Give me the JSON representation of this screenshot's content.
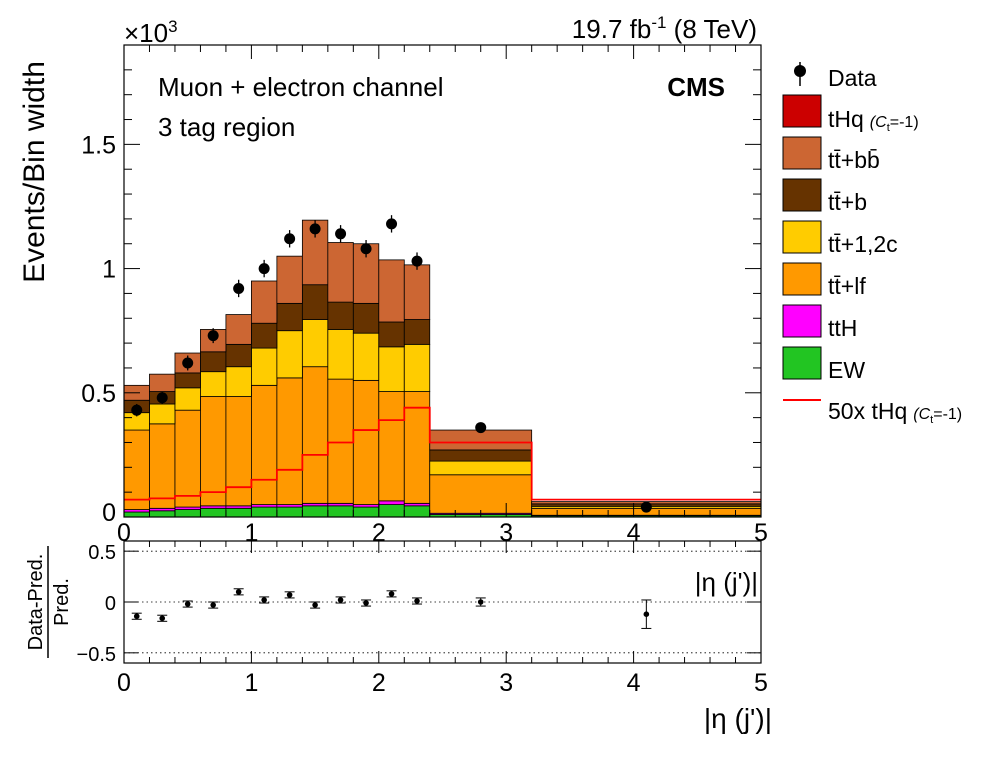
{
  "header": {
    "lumi": "19.7 fb",
    "lumi_sup": "-1",
    "energy": " (8 TeV)",
    "exponent_base": "×10",
    "exponent_sup": "3",
    "experiment": "CMS",
    "channel": "Muon + electron channel",
    "region": "3 tag region"
  },
  "legend": {
    "data": "Data",
    "thq": "tHq",
    "thq_note": "(C",
    "thq_note_sub": "t",
    "thq_note_end": "=-1)",
    "ttbb": "tt̄+bb̄",
    "ttb": "tt̄+b",
    "ttc": "tt̄+1,2c",
    "ttlf": "tt̄+lf",
    "tth": "ttH",
    "ew": "EW",
    "thq50": "50x tHq",
    "thq50_note": "(C",
    "thq50_note_sub": "t",
    "thq50_note_end": "=-1)"
  },
  "chart_data": [
    {
      "type": "area",
      "subtype": "stacked-histogram",
      "ylabel": "Events/Bin width",
      "xlabel": "",
      "y_scale_label": "×10^3",
      "xlim": [
        0,
        5
      ],
      "ylim": [
        0,
        1.9
      ],
      "xticks": [
        0,
        1,
        2,
        3,
        4,
        5
      ],
      "yticks": [
        0,
        0.5,
        1,
        1.5
      ],
      "ytick_labels": [
        "0",
        "0.5",
        "1",
        "1.5"
      ],
      "bin_edges": [
        0,
        0.2,
        0.4,
        0.6,
        0.8,
        1.0,
        1.2,
        1.4,
        1.6,
        1.8,
        2.0,
        2.2,
        2.4,
        3.2,
        5.0
      ],
      "stack_order": [
        "EW",
        "ttH",
        "tt̄+lf",
        "tt̄+1,2c",
        "tt̄+b",
        "tt̄+bb̄",
        "tHq"
      ],
      "series": [
        {
          "name": "EW",
          "color": "#22c522",
          "values": [
            0.02,
            0.025,
            0.03,
            0.035,
            0.035,
            0.04,
            0.04,
            0.045,
            0.045,
            0.04,
            0.05,
            0.045,
            0.01,
            0.005
          ]
        },
        {
          "name": "ttH",
          "color": "#ff00ff",
          "values": [
            0.01,
            0.01,
            0.01,
            0.01,
            0.01,
            0.01,
            0.01,
            0.01,
            0.01,
            0.01,
            0.015,
            0.01,
            0.005,
            0.002
          ]
        },
        {
          "name": "tt̄+lf",
          "color": "#ff9900",
          "values": [
            0.32,
            0.34,
            0.39,
            0.44,
            0.44,
            0.48,
            0.51,
            0.55,
            0.5,
            0.5,
            0.44,
            0.45,
            0.155,
            0.028
          ]
        },
        {
          "name": "tt̄+1,2c",
          "color": "#ffcc00",
          "values": [
            0.07,
            0.08,
            0.09,
            0.1,
            0.12,
            0.15,
            0.19,
            0.19,
            0.2,
            0.19,
            0.18,
            0.19,
            0.055,
            0.008
          ]
        },
        {
          "name": "tt̄+b",
          "color": "#663300",
          "values": [
            0.05,
            0.05,
            0.06,
            0.08,
            0.09,
            0.1,
            0.11,
            0.14,
            0.11,
            0.12,
            0.1,
            0.1,
            0.045,
            0.01
          ]
        },
        {
          "name": "tt̄+bb̄",
          "color": "#cc6633",
          "values": [
            0.06,
            0.07,
            0.08,
            0.09,
            0.12,
            0.17,
            0.19,
            0.26,
            0.24,
            0.24,
            0.25,
            0.22,
            0.08,
            0.009
          ]
        },
        {
          "name": "tHq",
          "color": "#cc0000",
          "values": [
            0.0,
            0.0,
            0.0,
            0.0,
            0.0,
            0.0,
            0.0,
            0.0,
            0.0,
            0.0,
            0.0,
            0.0,
            0.0,
            0.0
          ]
        }
      ],
      "signal_line": {
        "name": "50x tHq",
        "color": "#ff0000",
        "values": [
          0.07,
          0.075,
          0.085,
          0.1,
          0.12,
          0.15,
          0.19,
          0.25,
          0.3,
          0.35,
          0.39,
          0.44,
          0.3,
          0.07
        ]
      },
      "data_points": {
        "name": "Data",
        "x": [
          0.1,
          0.3,
          0.5,
          0.7,
          0.9,
          1.1,
          1.3,
          1.5,
          1.7,
          1.9,
          2.1,
          2.3,
          2.8,
          4.1
        ],
        "y": [
          0.43,
          0.48,
          0.62,
          0.73,
          0.92,
          1.0,
          1.12,
          1.16,
          1.14,
          1.08,
          1.18,
          1.03,
          0.36,
          0.04
        ],
        "err": [
          0.025,
          0.025,
          0.03,
          0.03,
          0.035,
          0.035,
          0.035,
          0.035,
          0.035,
          0.035,
          0.035,
          0.035,
          0.015,
          0.006
        ]
      }
    },
    {
      "type": "scatter",
      "subtype": "ratio",
      "ylabel_top": "Data-Pred.",
      "ylabel_bottom": "Pred.",
      "xlabel": "|η (j')|",
      "xlim": [
        0,
        5
      ],
      "ylim": [
        -0.6,
        0.6
      ],
      "xticks": [
        0,
        1,
        2,
        3,
        4,
        5
      ],
      "yticks": [
        -0.5,
        0,
        0.5
      ],
      "ytick_labels": [
        "−0.5",
        "0",
        "0.5"
      ],
      "gridlines_y": [
        -0.5,
        0,
        0.5
      ],
      "x": [
        0.1,
        0.3,
        0.5,
        0.7,
        0.9,
        1.1,
        1.3,
        1.5,
        1.7,
        1.9,
        2.1,
        2.3,
        2.8,
        4.1
      ],
      "y": [
        -0.14,
        -0.16,
        -0.02,
        -0.03,
        0.1,
        0.02,
        0.07,
        -0.03,
        0.02,
        -0.01,
        0.08,
        0.01,
        0.0,
        -0.12
      ],
      "err": [
        0.03,
        0.03,
        0.03,
        0.03,
        0.03,
        0.03,
        0.03,
        0.03,
        0.03,
        0.03,
        0.03,
        0.03,
        0.04,
        0.14
      ]
    }
  ]
}
